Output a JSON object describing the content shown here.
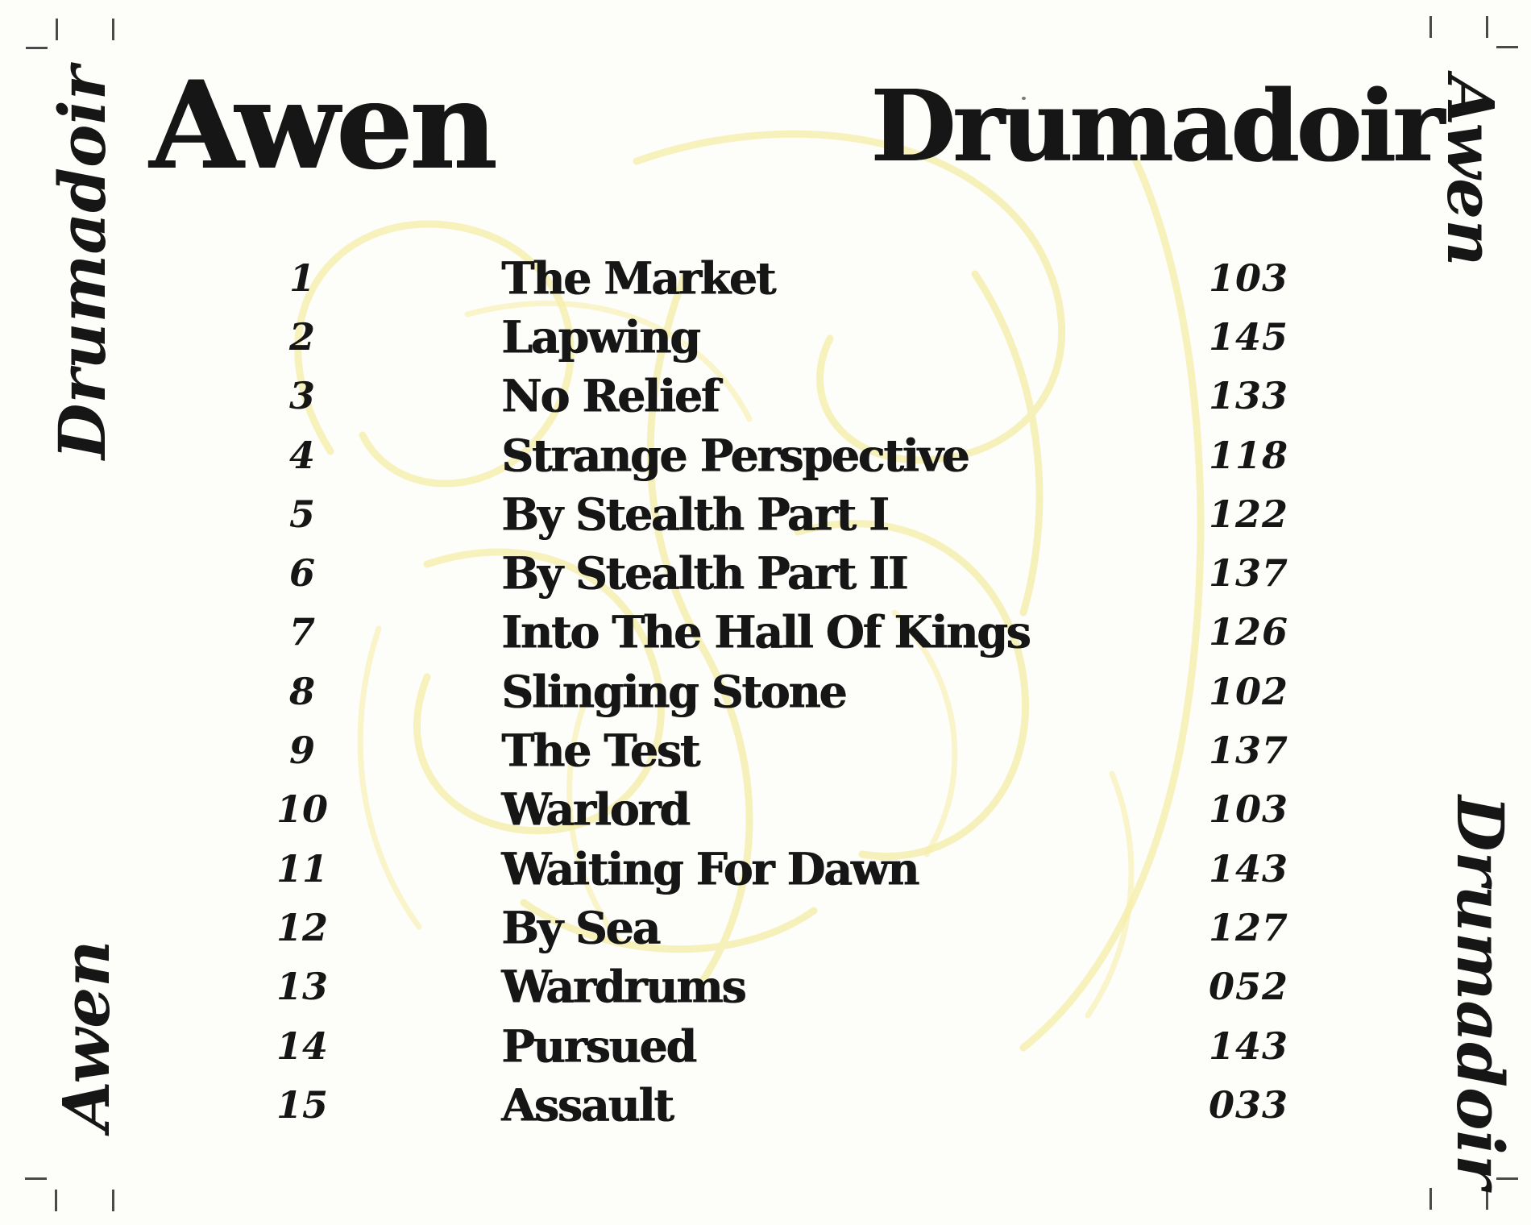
{
  "album": {
    "artist": "Awen",
    "title": "Drumadoir"
  },
  "header": {
    "artist_label": "Awen",
    "album_label": "Drumadoir"
  },
  "spines": {
    "left": {
      "top_text": "Drumadoir",
      "bottom_text": "Awen"
    },
    "right": {
      "top_text": "Awen",
      "bottom_text": "Drumadoir"
    }
  },
  "tracks": [
    {
      "num": "1",
      "title": "The Market",
      "duration": "103"
    },
    {
      "num": "2",
      "title": "Lapwing",
      "duration": "145"
    },
    {
      "num": "3",
      "title": "No Relief",
      "duration": "133"
    },
    {
      "num": "4",
      "title": "Strange Perspective",
      "duration": "118"
    },
    {
      "num": "5",
      "title": "By Stealth Part I",
      "duration": "122"
    },
    {
      "num": "6",
      "title": "By Stealth Part II",
      "duration": "137"
    },
    {
      "num": "7",
      "title": "Into The Hall Of Kings",
      "duration": "126"
    },
    {
      "num": "8",
      "title": "Slinging Stone",
      "duration": "102"
    },
    {
      "num": "9",
      "title": "The Test",
      "duration": "137"
    },
    {
      "num": "10",
      "title": "Warlord",
      "duration": "103"
    },
    {
      "num": "11",
      "title": "Waiting For Dawn",
      "duration": "143"
    },
    {
      "num": "12",
      "title": "By Sea",
      "duration": "127"
    },
    {
      "num": "13",
      "title": "Wardrums",
      "duration": "052"
    },
    {
      "num": "14",
      "title": "Pursued",
      "duration": "143"
    },
    {
      "num": "15",
      "title": "Assault",
      "duration": "033"
    }
  ],
  "colors": {
    "ink": "#161616",
    "knotwork": "#f1e77d",
    "knotwork_light": "#f6efa8",
    "crop_mark": "#4a4a4a",
    "background": "#fdfdfa"
  }
}
